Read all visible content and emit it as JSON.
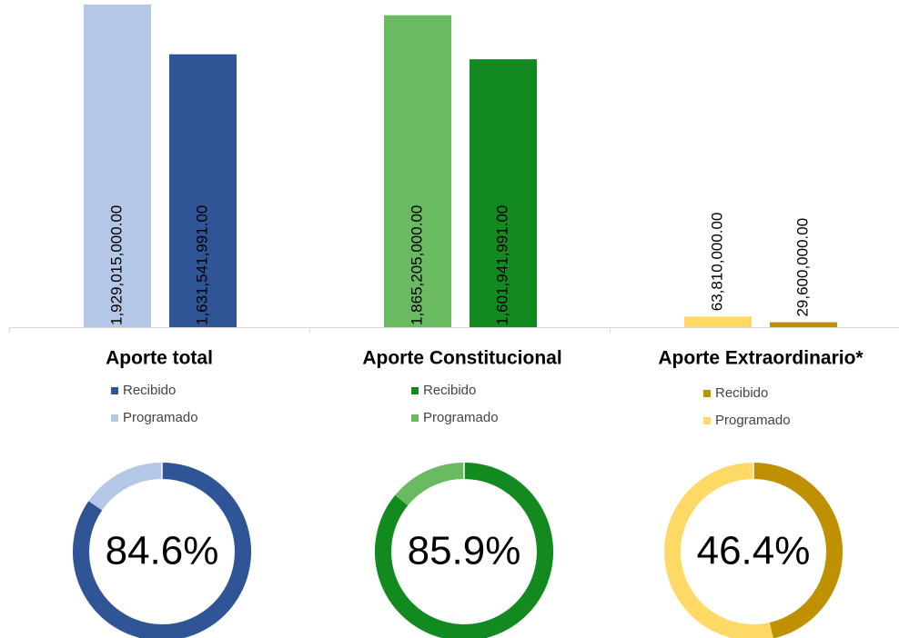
{
  "chart_data": [
    {
      "type": "bar",
      "title": "Aporte total",
      "ylim": [
        0,
        1929015000
      ],
      "series": [
        {
          "name": "Programado",
          "color": "#b4c7e7",
          "values": [
            1929015000
          ],
          "value_labels": [
            "1,929,015,000.00"
          ]
        },
        {
          "name": "Recibido",
          "color": "#2f5597",
          "values": [
            1631541991
          ],
          "value_labels": [
            "1,631,541,991.00"
          ]
        }
      ]
    },
    {
      "type": "bar",
      "title": "Aporte Constitucional",
      "ylim": [
        0,
        1929015000
      ],
      "series": [
        {
          "name": "Programado",
          "color": "#6aba62",
          "values": [
            1865205000
          ],
          "value_labels": [
            "1,865,205,000.00"
          ]
        },
        {
          "name": "Recibido",
          "color": "#128a1f",
          "values": [
            1601941991
          ],
          "value_labels": [
            "1,601,941,991.00"
          ]
        }
      ]
    },
    {
      "type": "bar",
      "title": "Aporte Extraordinario*",
      "ylim": [
        0,
        1929015000
      ],
      "series": [
        {
          "name": "Programado",
          "color": "#ffd966",
          "values": [
            63810000
          ],
          "value_labels": [
            "63,810,000.00"
          ]
        },
        {
          "name": "Recibido",
          "color": "#bf9000",
          "values": [
            29600000
          ],
          "value_labels": [
            "29,600,000.00"
          ]
        }
      ]
    },
    {
      "type": "donut",
      "values": [
        84.6
      ],
      "value_labels": [
        "84.6%"
      ],
      "colors": [
        "#2f5597",
        "#b4c7e7"
      ]
    },
    {
      "type": "donut",
      "values": [
        85.9
      ],
      "value_labels": [
        "85.9%"
      ],
      "colors": [
        "#128a1f",
        "#6aba62"
      ]
    },
    {
      "type": "donut",
      "values": [
        46.4
      ],
      "value_labels": [
        "46.4%"
      ],
      "colors": [
        "#bf9000",
        "#ffd966"
      ]
    }
  ]
}
